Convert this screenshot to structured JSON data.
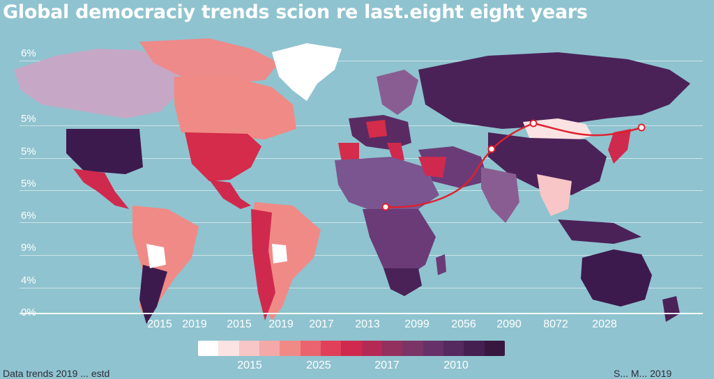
{
  "title": "Global democraciy trends scion re last.eight eight years",
  "y_axis_labels": [
    "6%",
    "5%",
    "5%",
    "5%",
    "6%",
    "9%",
    "4%",
    "0%"
  ],
  "x_axis_labels": [
    "2015",
    "2019",
    "2015",
    "2019",
    "2017",
    "2013",
    "2099",
    "2056",
    "2090",
    "8072",
    "2028"
  ],
  "legend": {
    "colors": [
      "#ffffff",
      "#fbe3e3",
      "#f8c6c6",
      "#f5a8a8",
      "#f08a86",
      "#ea6470",
      "#e0405a",
      "#cf2a4e",
      "#b52a55",
      "#93305d",
      "#7a3566",
      "#663168",
      "#552a5e",
      "#451f50",
      "#371740"
    ],
    "labels": [
      "2015",
      "2025",
      "2017",
      "2010"
    ]
  },
  "footer": {
    "left": "Data trends 2019 ... estd",
    "right": "S... M... 2019"
  },
  "colors": {
    "ocean": "#8fc3cf",
    "route": "#e0202e"
  }
}
